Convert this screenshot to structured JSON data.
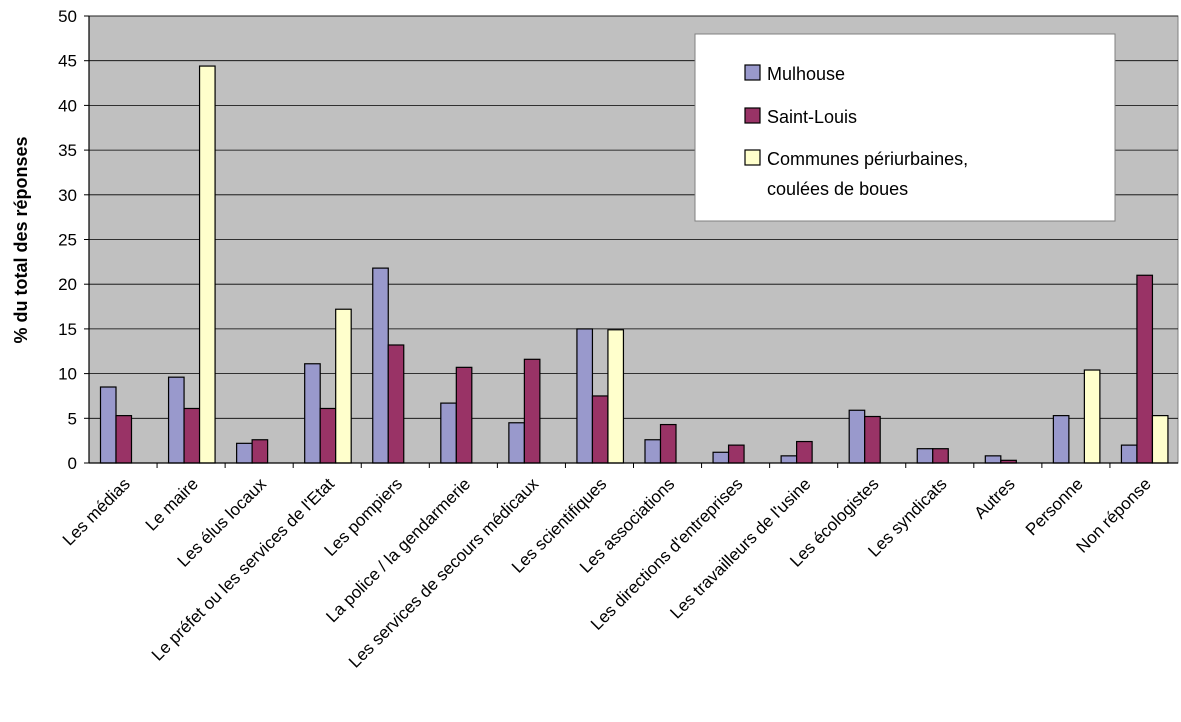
{
  "chart_data": {
    "type": "bar",
    "ylabel": "% du total des réponses",
    "ylim": [
      0,
      50
    ],
    "yticks": [
      0,
      5,
      10,
      15,
      20,
      25,
      30,
      35,
      40,
      45,
      50
    ],
    "grid": true,
    "legend_position": "top-right",
    "categories": [
      "Les médias",
      "Le maire",
      "Les élus locaux",
      "Le préfet ou les services de l'Etat",
      "Les pompiers",
      "La police / la gendarmerie",
      "Les services de secours médicaux",
      "Les scientifiques",
      "Les associations",
      "Les directions d'entreprises",
      "Les travailleurs de l'usine",
      "Les écologistes",
      "Les syndicats",
      "Autres",
      "Personne",
      "Non réponse"
    ],
    "series": [
      {
        "name": "Mulhouse",
        "color": "#9999CC",
        "values": [
          8.5,
          9.6,
          2.2,
          11.1,
          21.8,
          6.7,
          4.5,
          15.0,
          2.6,
          1.2,
          0.8,
          5.9,
          1.6,
          0.8,
          5.3,
          2.0
        ]
      },
      {
        "name": "Saint-Louis",
        "color": "#993366",
        "values": [
          5.3,
          6.1,
          2.6,
          6.1,
          13.2,
          10.7,
          11.6,
          7.5,
          4.3,
          2.0,
          2.4,
          5.2,
          1.6,
          0.3,
          0,
          21.0
        ]
      },
      {
        "name": "Communes périurbaines, coulées de boues",
        "legend_lines": [
          "Communes périurbaines,",
          "coulées de boues"
        ],
        "color": "#FFFFCC",
        "values": [
          0,
          44.4,
          0,
          17.2,
          0,
          0,
          0,
          14.9,
          0,
          0,
          0,
          0,
          0,
          0,
          10.4,
          5.3
        ]
      }
    ],
    "colors": {
      "plot_background": "#C0C0C0",
      "gridline": "#000000",
      "bar_outline": "#000000"
    }
  }
}
